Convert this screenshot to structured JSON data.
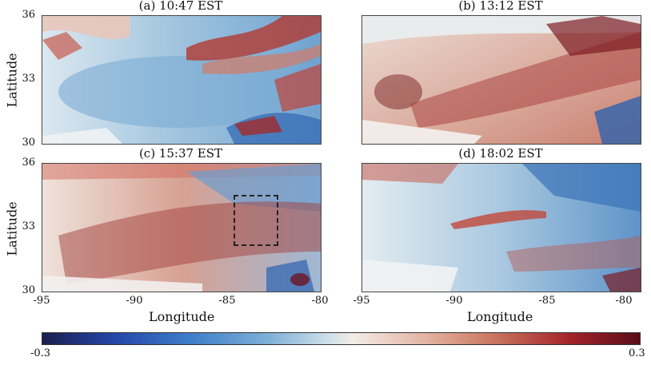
{
  "panels": [
    {
      "title": "(a) 10:47 EST"
    },
    {
      "title": "(b) 13:12 EST"
    },
    {
      "title": "(c) 15:37 EST"
    },
    {
      "title": "(d) 18:02 EST"
    }
  ],
  "axes": {
    "ylabel": "Latitude",
    "xlabel": "Longitude",
    "yticks": [
      "36",
      "33",
      "30"
    ],
    "xticks": [
      "-95",
      "-90",
      "-85",
      "-80"
    ]
  },
  "colorbar": {
    "min_label": "-0.3",
    "max_label": "0.3",
    "colors": [
      "#1a1f4e",
      "#2546a8",
      "#3f7fc8",
      "#7fb0d8",
      "#cfe0ea",
      "#f2ece8",
      "#e4b4a2",
      "#c8735e",
      "#a5242a",
      "#5a0d18"
    ]
  }
}
